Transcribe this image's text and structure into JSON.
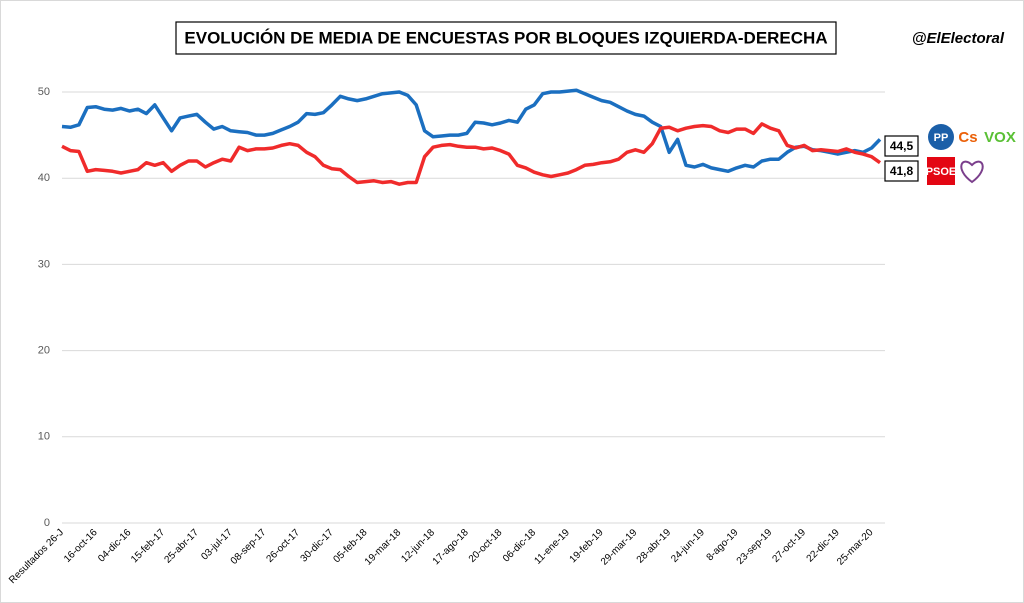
{
  "chart_data": {
    "type": "line",
    "title": "EVOLUCIÓN DE MEDIA DE ENCUESTAS POR BLOQUES IZQUIERDA-DERECHA",
    "credit": "@ElElectoral",
    "categories": [
      "Resultados 26-J",
      null,
      null,
      null,
      "16-oct-16",
      null,
      null,
      null,
      "04-dic-16",
      null,
      null,
      null,
      "15-feb-17",
      null,
      null,
      null,
      "25-abr-17",
      null,
      null,
      null,
      "03-jul-17",
      null,
      null,
      null,
      "08-sep-17",
      null,
      null,
      null,
      "26-oct-17",
      null,
      null,
      null,
      "30-dic-17",
      null,
      null,
      null,
      "05-feb-18",
      null,
      null,
      null,
      "19-mar-18",
      null,
      null,
      null,
      "12-jun-18",
      null,
      null,
      null,
      "17-ago-18",
      null,
      null,
      null,
      "20-oct-18",
      null,
      null,
      null,
      "06-dic-18",
      null,
      null,
      null,
      "11-ene-19",
      null,
      null,
      null,
      "19-feb-19",
      null,
      null,
      null,
      "29-mar-19",
      null,
      null,
      null,
      "28-abr-19",
      null,
      null,
      null,
      "24-jun-19",
      null,
      null,
      null,
      "8-ago-19",
      null,
      null,
      null,
      "23-sep-19",
      null,
      null,
      null,
      "27-oct-19",
      null,
      null,
      null,
      "22-dic-19",
      null,
      null,
      null,
      "25-mar-20",
      null
    ],
    "series": [
      {
        "color": "#1b6fc0",
        "logos": [
          "PP",
          "Cs",
          "VOX"
        ],
        "values": [
          46.0,
          45.9,
          46.2,
          48.2,
          48.3,
          48.0,
          47.9,
          48.1,
          47.8,
          48.0,
          47.5,
          48.5,
          47.0,
          45.5,
          47.0,
          47.2,
          47.4,
          46.5,
          45.7,
          46.0,
          45.5,
          45.4,
          45.3,
          45.0,
          45.0,
          45.2,
          45.6,
          46.0,
          46.5,
          47.5,
          47.4,
          47.6,
          48.5,
          49.5,
          49.2,
          49.0,
          49.2,
          49.5,
          49.8,
          49.9,
          50.0,
          49.6,
          48.5,
          45.5,
          44.8,
          44.9,
          45.0,
          45.0,
          45.2,
          46.5,
          46.4,
          46.2,
          46.4,
          46.7,
          46.5,
          48.0,
          48.5,
          49.8,
          50.0,
          50.0,
          50.1,
          50.2,
          49.8,
          49.4,
          49.0,
          48.8,
          48.3,
          47.8,
          47.4,
          47.2,
          46.5,
          46.0,
          43.0,
          44.5,
          41.5,
          41.3,
          41.6,
          41.2,
          41.0,
          40.8,
          41.2,
          41.5,
          41.3,
          42.0,
          42.2,
          42.2,
          43.0,
          43.6,
          43.7,
          43.3,
          43.2,
          43.0,
          42.8,
          43.0,
          43.2,
          43.0,
          43.5,
          44.5
        ],
        "value_labels": [
          null,
          null,
          null,
          null,
          null,
          null,
          null,
          null,
          null,
          null,
          null,
          null,
          null,
          null,
          null,
          null,
          null,
          null,
          null,
          null,
          null,
          null,
          null,
          null,
          null,
          null,
          null,
          null,
          null,
          null,
          null,
          null,
          null,
          null,
          null,
          null,
          null,
          null,
          null,
          null,
          null,
          null,
          null,
          null,
          null,
          null,
          null,
          null,
          null,
          null,
          null,
          null,
          null,
          null,
          null,
          null,
          null,
          null,
          null,
          null,
          null,
          null,
          null,
          null,
          null,
          null,
          null,
          null,
          null,
          null,
          null,
          null,
          null,
          null,
          null,
          null,
          null,
          null,
          null,
          null,
          null,
          null,
          null,
          null,
          null,
          null,
          null,
          null,
          null,
          null,
          null,
          null,
          null,
          null,
          null,
          null,
          null,
          "44,5"
        ]
      },
      {
        "color": "#f02b2b",
        "logos": [
          "PSOE",
          "Más país"
        ],
        "values": [
          43.7,
          43.2,
          43.1,
          40.8,
          41.0,
          40.9,
          40.8,
          40.6,
          40.8,
          41.0,
          41.8,
          41.5,
          41.8,
          40.8,
          41.5,
          42.0,
          42.0,
          41.3,
          41.8,
          42.2,
          42.0,
          43.6,
          43.2,
          43.4,
          43.4,
          43.5,
          43.8,
          44.0,
          43.8,
          43.0,
          42.5,
          41.5,
          41.1,
          41.0,
          40.2,
          39.5,
          39.6,
          39.7,
          39.5,
          39.6,
          39.3,
          39.5,
          39.5,
          42.5,
          43.6,
          43.8,
          43.9,
          43.7,
          43.6,
          43.6,
          43.4,
          43.5,
          43.2,
          42.8,
          41.5,
          41.2,
          40.7,
          40.4,
          40.2,
          40.4,
          40.6,
          41.0,
          41.5,
          41.6,
          41.8,
          41.9,
          42.2,
          43.0,
          43.3,
          43.0,
          44.0,
          45.8,
          45.9,
          45.5,
          45.8,
          46.0,
          46.1,
          46.0,
          45.5,
          45.3,
          45.7,
          45.7,
          45.2,
          46.3,
          45.8,
          45.5,
          43.8,
          43.5,
          43.8,
          43.2,
          43.3,
          43.2,
          43.1,
          43.4,
          43.0,
          42.8,
          42.5,
          41.8
        ],
        "value_labels": [
          null,
          null,
          null,
          null,
          null,
          null,
          null,
          null,
          null,
          null,
          null,
          null,
          null,
          null,
          null,
          null,
          null,
          null,
          null,
          null,
          null,
          null,
          null,
          null,
          null,
          null,
          null,
          null,
          null,
          null,
          null,
          null,
          null,
          null,
          null,
          null,
          null,
          null,
          null,
          null,
          null,
          null,
          null,
          null,
          null,
          null,
          null,
          null,
          null,
          null,
          null,
          null,
          null,
          null,
          null,
          null,
          null,
          null,
          null,
          null,
          null,
          null,
          null,
          null,
          null,
          null,
          null,
          null,
          null,
          null,
          null,
          null,
          null,
          null,
          null,
          null,
          null,
          null,
          null,
          null,
          null,
          null,
          null,
          null,
          null,
          null,
          null,
          null,
          null,
          null,
          null,
          null,
          null,
          null,
          null,
          null,
          null,
          "41,8"
        ]
      }
    ],
    "ylim": [
      0,
      50
    ],
    "yticks": [
      0,
      10,
      20,
      30,
      40,
      50
    ],
    "grid": true
  }
}
